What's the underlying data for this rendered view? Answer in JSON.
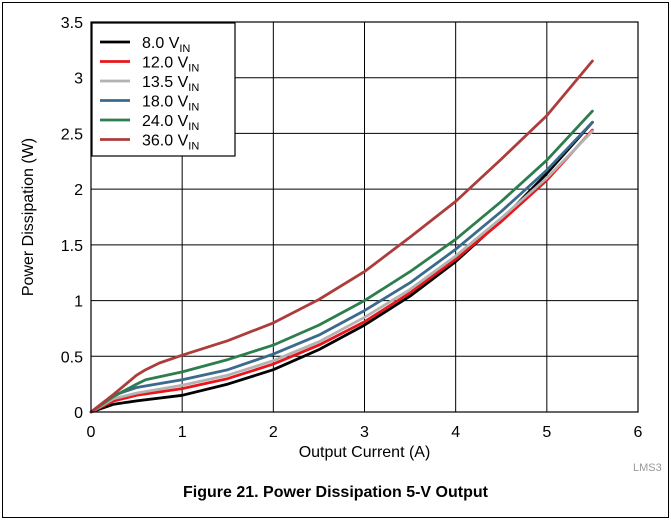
{
  "caption": "Figure 21. Power Dissipation 5-V Output",
  "doc_code": "LMS3",
  "chart_data": {
    "type": "line",
    "title": "",
    "xlabel": "Output Current (A)",
    "ylabel": "Power Dissipation (W)",
    "xlim": [
      0,
      6
    ],
    "ylim": [
      0,
      3.5
    ],
    "x_ticks": [
      "0",
      "1",
      "2",
      "3",
      "4",
      "5",
      "6"
    ],
    "y_ticks": [
      "0",
      "0.5",
      "1",
      "1.5",
      "2",
      "2.5",
      "3",
      "3.5"
    ],
    "x_tick_values": [
      0,
      1,
      2,
      3,
      4,
      5,
      6
    ],
    "y_tick_values": [
      0,
      0.5,
      1,
      1.5,
      2,
      2.5,
      3,
      3.5
    ],
    "grid": true,
    "legend_position": "top-left",
    "series": [
      {
        "name": "8.0 V",
        "name_sub": "IN",
        "color": "#000000",
        "x": [
          0,
          0.25,
          0.5,
          1,
          1.5,
          2,
          2.5,
          3,
          3.5,
          4,
          4.5,
          5,
          5.5
        ],
        "y": [
          0,
          0.07,
          0.1,
          0.15,
          0.25,
          0.38,
          0.56,
          0.78,
          1.04,
          1.35,
          1.72,
          2.14,
          2.6
        ]
      },
      {
        "name": "12.0 V",
        "name_sub": "IN",
        "color": "#e8161c",
        "x": [
          0,
          0.25,
          0.5,
          1,
          1.5,
          2,
          2.5,
          3,
          3.5,
          4,
          4.5,
          5,
          5.5
        ],
        "y": [
          0,
          0.1,
          0.15,
          0.21,
          0.3,
          0.43,
          0.6,
          0.81,
          1.07,
          1.37,
          1.71,
          2.08,
          2.53
        ]
      },
      {
        "name": "13.5 V",
        "name_sub": "IN",
        "color": "#b3b3b3",
        "x": [
          0,
          0.25,
          0.5,
          1,
          1.5,
          2,
          2.5,
          3,
          3.5,
          4,
          4.5,
          5,
          5.5
        ],
        "y": [
          0,
          0.12,
          0.17,
          0.24,
          0.33,
          0.46,
          0.63,
          0.85,
          1.1,
          1.4,
          1.74,
          2.1,
          2.52
        ]
      },
      {
        "name": "18.0 V",
        "name_sub": "IN",
        "color": "#3b6a8c",
        "x": [
          0,
          0.25,
          0.5,
          1,
          1.5,
          2,
          2.5,
          3,
          3.5,
          4,
          4.5,
          5,
          5.5
        ],
        "y": [
          0,
          0.15,
          0.22,
          0.29,
          0.38,
          0.52,
          0.69,
          0.91,
          1.16,
          1.46,
          1.8,
          2.17,
          2.6
        ]
      },
      {
        "name": "24.0 V",
        "name_sub": "IN",
        "color": "#2e7d4f",
        "x": [
          0,
          0.25,
          0.5,
          0.6,
          1,
          1.5,
          2,
          2.5,
          3,
          3.5,
          4,
          4.5,
          5,
          5.5
        ],
        "y": [
          0,
          0.14,
          0.25,
          0.29,
          0.36,
          0.47,
          0.6,
          0.78,
          1.0,
          1.26,
          1.55,
          1.89,
          2.26,
          2.7
        ]
      },
      {
        "name": "36.0 V",
        "name_sub": "IN",
        "color": "#ad3c3c",
        "x": [
          0,
          0.25,
          0.5,
          0.6,
          0.75,
          1,
          1.5,
          2,
          2.5,
          3,
          3.5,
          4,
          4.5,
          5,
          5.5
        ],
        "y": [
          0,
          0.16,
          0.33,
          0.38,
          0.44,
          0.51,
          0.64,
          0.8,
          1.01,
          1.26,
          1.57,
          1.89,
          2.27,
          2.66,
          3.15
        ]
      }
    ]
  }
}
